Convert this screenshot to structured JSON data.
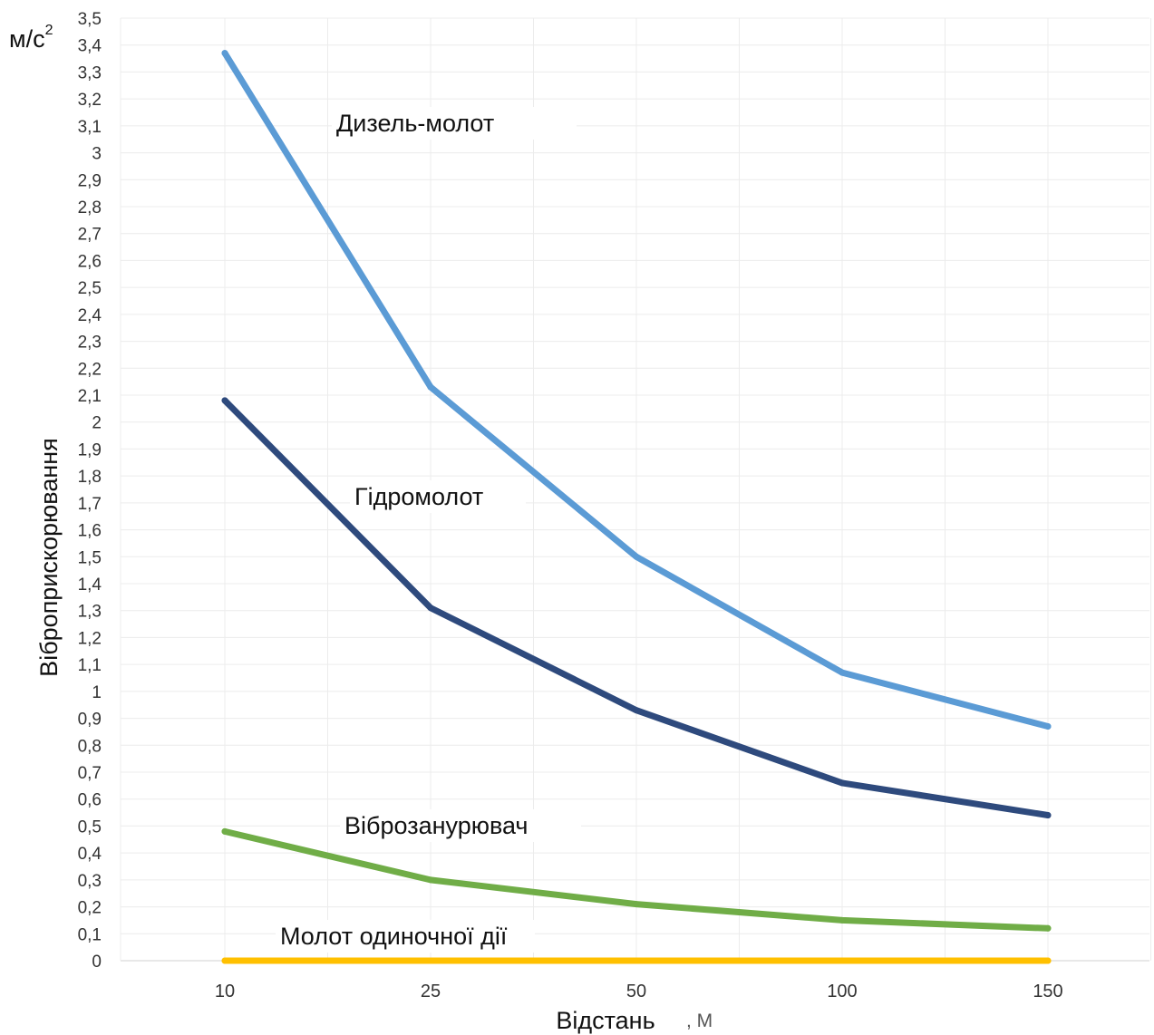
{
  "chart_data": {
    "type": "line",
    "unit_label": "м/с",
    "unit_power": "2",
    "ylabel": "Віброприскорювання",
    "xlabel": "Відстань",
    "xlabel_unit": ", М",
    "categories": [
      "10",
      "25",
      "50",
      "100",
      "150"
    ],
    "ylim": [
      0,
      3.5
    ],
    "yticks": [
      "0",
      "0,1",
      "0,2",
      "0,3",
      "0,4",
      "0,5",
      "0,6",
      "0,7",
      "0,8",
      "0,9",
      "1",
      "1,1",
      "1,2",
      "1,3",
      "1,4",
      "1,5",
      "1,6",
      "1,7",
      "1,8",
      "1,9",
      "2",
      "2,1",
      "2,2",
      "2,3",
      "2,4",
      "2,5",
      "2,6",
      "2,7",
      "2,8",
      "2,9",
      "3",
      "3,1",
      "3,2",
      "3,3",
      "3,4",
      "3,5"
    ],
    "grid": true,
    "series": [
      {
        "name": "Дизель-молот",
        "values": [
          3.37,
          2.13,
          1.5,
          1.07,
          0.87
        ],
        "color": "#5b9bd5"
      },
      {
        "name": "Гідромолот",
        "values": [
          2.08,
          1.31,
          0.93,
          0.66,
          0.54
        ],
        "color": "#2e4a7d"
      },
      {
        "name": "Віброзанурювач",
        "values": [
          0.48,
          0.3,
          0.21,
          0.15,
          0.12
        ],
        "color": "#70ad47"
      },
      {
        "name": "Молот одиночної дії",
        "values": [
          0.0,
          0.0,
          0.0,
          0.0,
          0.0
        ],
        "color": "#ffc000"
      }
    ]
  }
}
